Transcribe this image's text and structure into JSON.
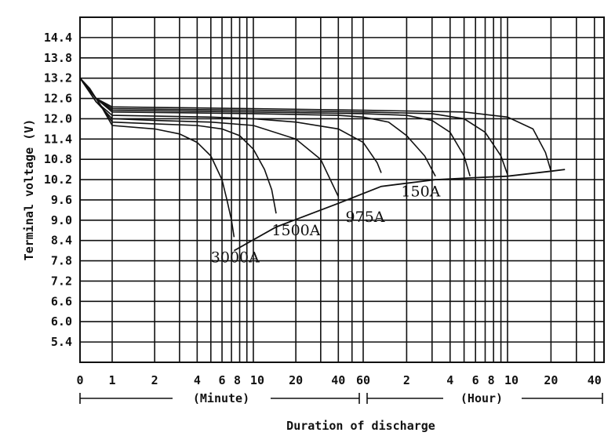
{
  "chart_data": {
    "type": "line",
    "title": "",
    "ylabel": "Terminal voltage (V)",
    "xlabel": "Duration of discharge",
    "x_scale": "log",
    "x_segments": [
      {
        "label": "(Minute)",
        "ticks": [
          "0",
          "1",
          "2",
          "4",
          "6",
          "8",
          "10",
          "20",
          "40",
          "60"
        ]
      },
      {
        "label": "(Hour)",
        "ticks": [
          "2",
          "4",
          "6",
          "8",
          "10",
          "20",
          "40"
        ]
      }
    ],
    "y_ticks": [
      "14.4",
      "13.8",
      "13.2",
      "12.6",
      "12.0",
      "11.4",
      "10.8",
      "10.2",
      "9.6",
      "9.0",
      "8.4",
      "7.8",
      "7.2",
      "6.6",
      "6.0",
      "5.4"
    ],
    "ylim": [
      4.8,
      15.0
    ],
    "grid": true,
    "series": [
      {
        "name": "3000A",
        "x": [
          0,
          0.3,
          0.7,
          1,
          2,
          3,
          4,
          5,
          6,
          6.5,
          7,
          7.3
        ],
        "y": [
          13.2,
          12.9,
          12.3,
          11.8,
          11.7,
          11.55,
          11.3,
          10.9,
          10.2,
          9.6,
          9.0,
          8.5
        ]
      },
      {
        "name": "1500A",
        "x": [
          0,
          0.5,
          1,
          2,
          4,
          6,
          8,
          10,
          12,
          13.5,
          14.5
        ],
        "y": [
          13.2,
          12.6,
          11.9,
          11.85,
          11.8,
          11.7,
          11.5,
          11.1,
          10.5,
          9.9,
          9.2
        ]
      },
      {
        "name": "975A",
        "x": [
          0,
          0.5,
          1,
          2,
          5,
          10,
          20,
          30,
          40
        ],
        "y": [
          13.2,
          12.5,
          12.0,
          11.95,
          11.9,
          11.8,
          11.4,
          10.8,
          9.7
        ]
      },
      {
        "x": [
          0,
          0.5,
          1,
          5,
          10,
          20,
          40,
          60,
          75,
          80
        ],
        "y": [
          13.2,
          12.5,
          12.1,
          12.05,
          12.0,
          11.9,
          11.7,
          11.3,
          10.7,
          10.4
        ]
      },
      {
        "name": "150A",
        "x": [
          0,
          0.5,
          1,
          10,
          40,
          60,
          90,
          120,
          160,
          190
        ],
        "y": [
          13.2,
          12.6,
          12.2,
          12.15,
          12.1,
          12.05,
          11.9,
          11.5,
          10.9,
          10.3
        ]
      },
      {
        "x": [
          0,
          0.5,
          1,
          10,
          60,
          120,
          180,
          240,
          300,
          330
        ],
        "y": [
          13.2,
          12.6,
          12.25,
          12.2,
          12.15,
          12.1,
          11.95,
          11.6,
          10.9,
          10.3
        ]
      },
      {
        "x": [
          0,
          0.5,
          1,
          10,
          60,
          180,
          300,
          420,
          540,
          600
        ],
        "y": [
          13.2,
          12.6,
          12.3,
          12.25,
          12.2,
          12.15,
          12.0,
          11.6,
          10.9,
          10.35
        ]
      },
      {
        "x": [
          0,
          0.5,
          1,
          10,
          60,
          300,
          600,
          900,
          1100,
          1200
        ],
        "y": [
          13.2,
          12.6,
          12.35,
          12.3,
          12.25,
          12.2,
          12.05,
          11.7,
          11.0,
          10.45
        ]
      }
    ],
    "end_voltage_envelope": {
      "x": [
        7.3,
        14.5,
        40,
        80,
        190,
        330,
        600,
        1200,
        1500
      ],
      "y": [
        8.1,
        8.8,
        9.5,
        10.0,
        10.2,
        10.25,
        10.3,
        10.45,
        10.5
      ]
    },
    "curve_labels": [
      {
        "text": "3000A",
        "x": 5.0,
        "y": 7.75
      },
      {
        "text": "1500A",
        "x": 13.5,
        "y": 8.55
      },
      {
        "text": "975A",
        "x": 45,
        "y": 8.95
      },
      {
        "text": "150A",
        "x": 110,
        "y": 9.7
      }
    ]
  }
}
